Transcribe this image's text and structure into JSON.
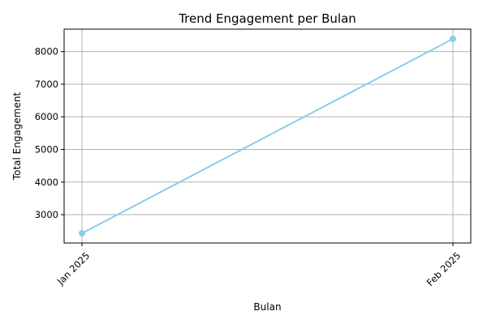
{
  "chart_data": {
    "type": "line",
    "title": "Trend Engagement per Bulan",
    "xlabel": "Bulan",
    "ylabel": "Total Engagement",
    "categories": [
      "Jan 2025",
      "Feb 2025"
    ],
    "series": [
      {
        "values": [
          2430,
          8390
        ],
        "color": "#87ceeb",
        "marker": "circle"
      }
    ],
    "yticks": [
      3000,
      4000,
      5000,
      6000,
      7000,
      8000
    ],
    "ylim": [
      2132,
      8688
    ],
    "grid": true,
    "xtick_rotation": 45
  }
}
